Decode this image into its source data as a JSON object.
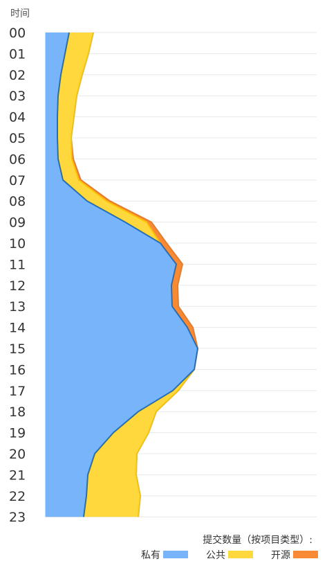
{
  "chart_data": {
    "type": "area",
    "orientation": "vertical-stacked-streams",
    "y_axis_title": "时间",
    "categories": [
      "00",
      "01",
      "02",
      "03",
      "04",
      "05",
      "06",
      "07",
      "08",
      "09",
      "10",
      "11",
      "12",
      "13",
      "14",
      "15",
      "16",
      "17",
      "18",
      "19",
      "20",
      "21",
      "22",
      "23"
    ],
    "legend_title": "提交数量（按项目类型）:",
    "legend_position": "bottom-right",
    "grid": true,
    "series": [
      {
        "name": "私有",
        "color": "#78b4fa",
        "stroke": "#1f6fc5",
        "values": [
          34,
          28,
          22,
          18,
          17,
          17,
          18,
          25,
          60,
          115,
          166,
          189,
          182,
          183,
          205,
          220,
          215,
          184,
          134,
          98,
          71,
          61,
          59,
          55
        ]
      },
      {
        "name": "公共",
        "color": "#ffd83d",
        "stroke": "#f5c400",
        "values": [
          35,
          34,
          31,
          27,
          24,
          20,
          20,
          23,
          28,
          31,
          0,
          0,
          0,
          0,
          0,
          0,
          0,
          8,
          26,
          51,
          61,
          70,
          78,
          79
        ]
      },
      {
        "name": "开源",
        "color": "#f98a35",
        "stroke": "#f07a1e",
        "values": [
          0,
          0,
          0,
          0,
          0,
          0,
          2,
          3,
          5,
          7,
          9,
          9,
          9,
          9,
          8,
          0,
          0,
          0,
          0,
          0,
          0,
          0,
          0,
          0
        ]
      }
    ]
  }
}
